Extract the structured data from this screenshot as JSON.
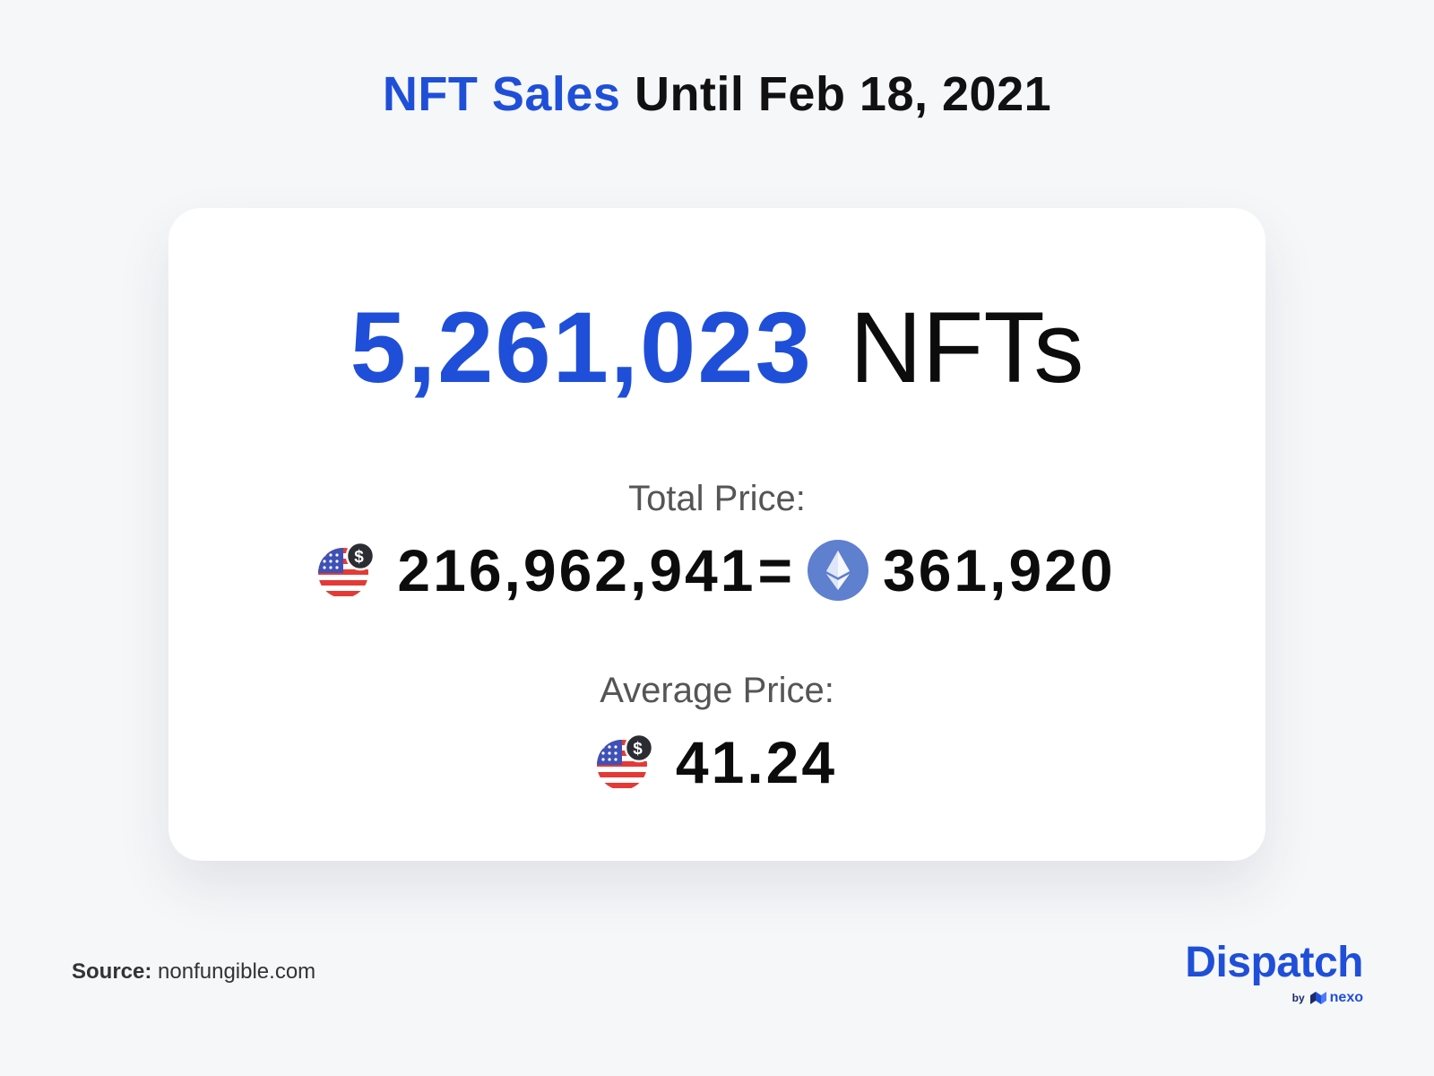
{
  "header": {
    "title_accent": "NFT Sales",
    "title_rest": "Until Feb 18, 2021",
    "accent_color": "#1f4fd8"
  },
  "stats": {
    "nft_count": "5,261,023",
    "nft_unit": "NFTs",
    "total_price_label": "Total Price:",
    "total_usd": "216,962,941",
    "equals": "=",
    "total_eth": "361,920",
    "average_price_label": "Average Price:",
    "average_usd": "41.24"
  },
  "icons": {
    "usd": "us-flag-dollar-icon",
    "eth": "ethereum-icon"
  },
  "footer": {
    "source_label": "Source:",
    "source_value": "nonfungible.com",
    "brand_name": "Dispatch",
    "brand_by": "by",
    "brand_partner": "nexo"
  }
}
